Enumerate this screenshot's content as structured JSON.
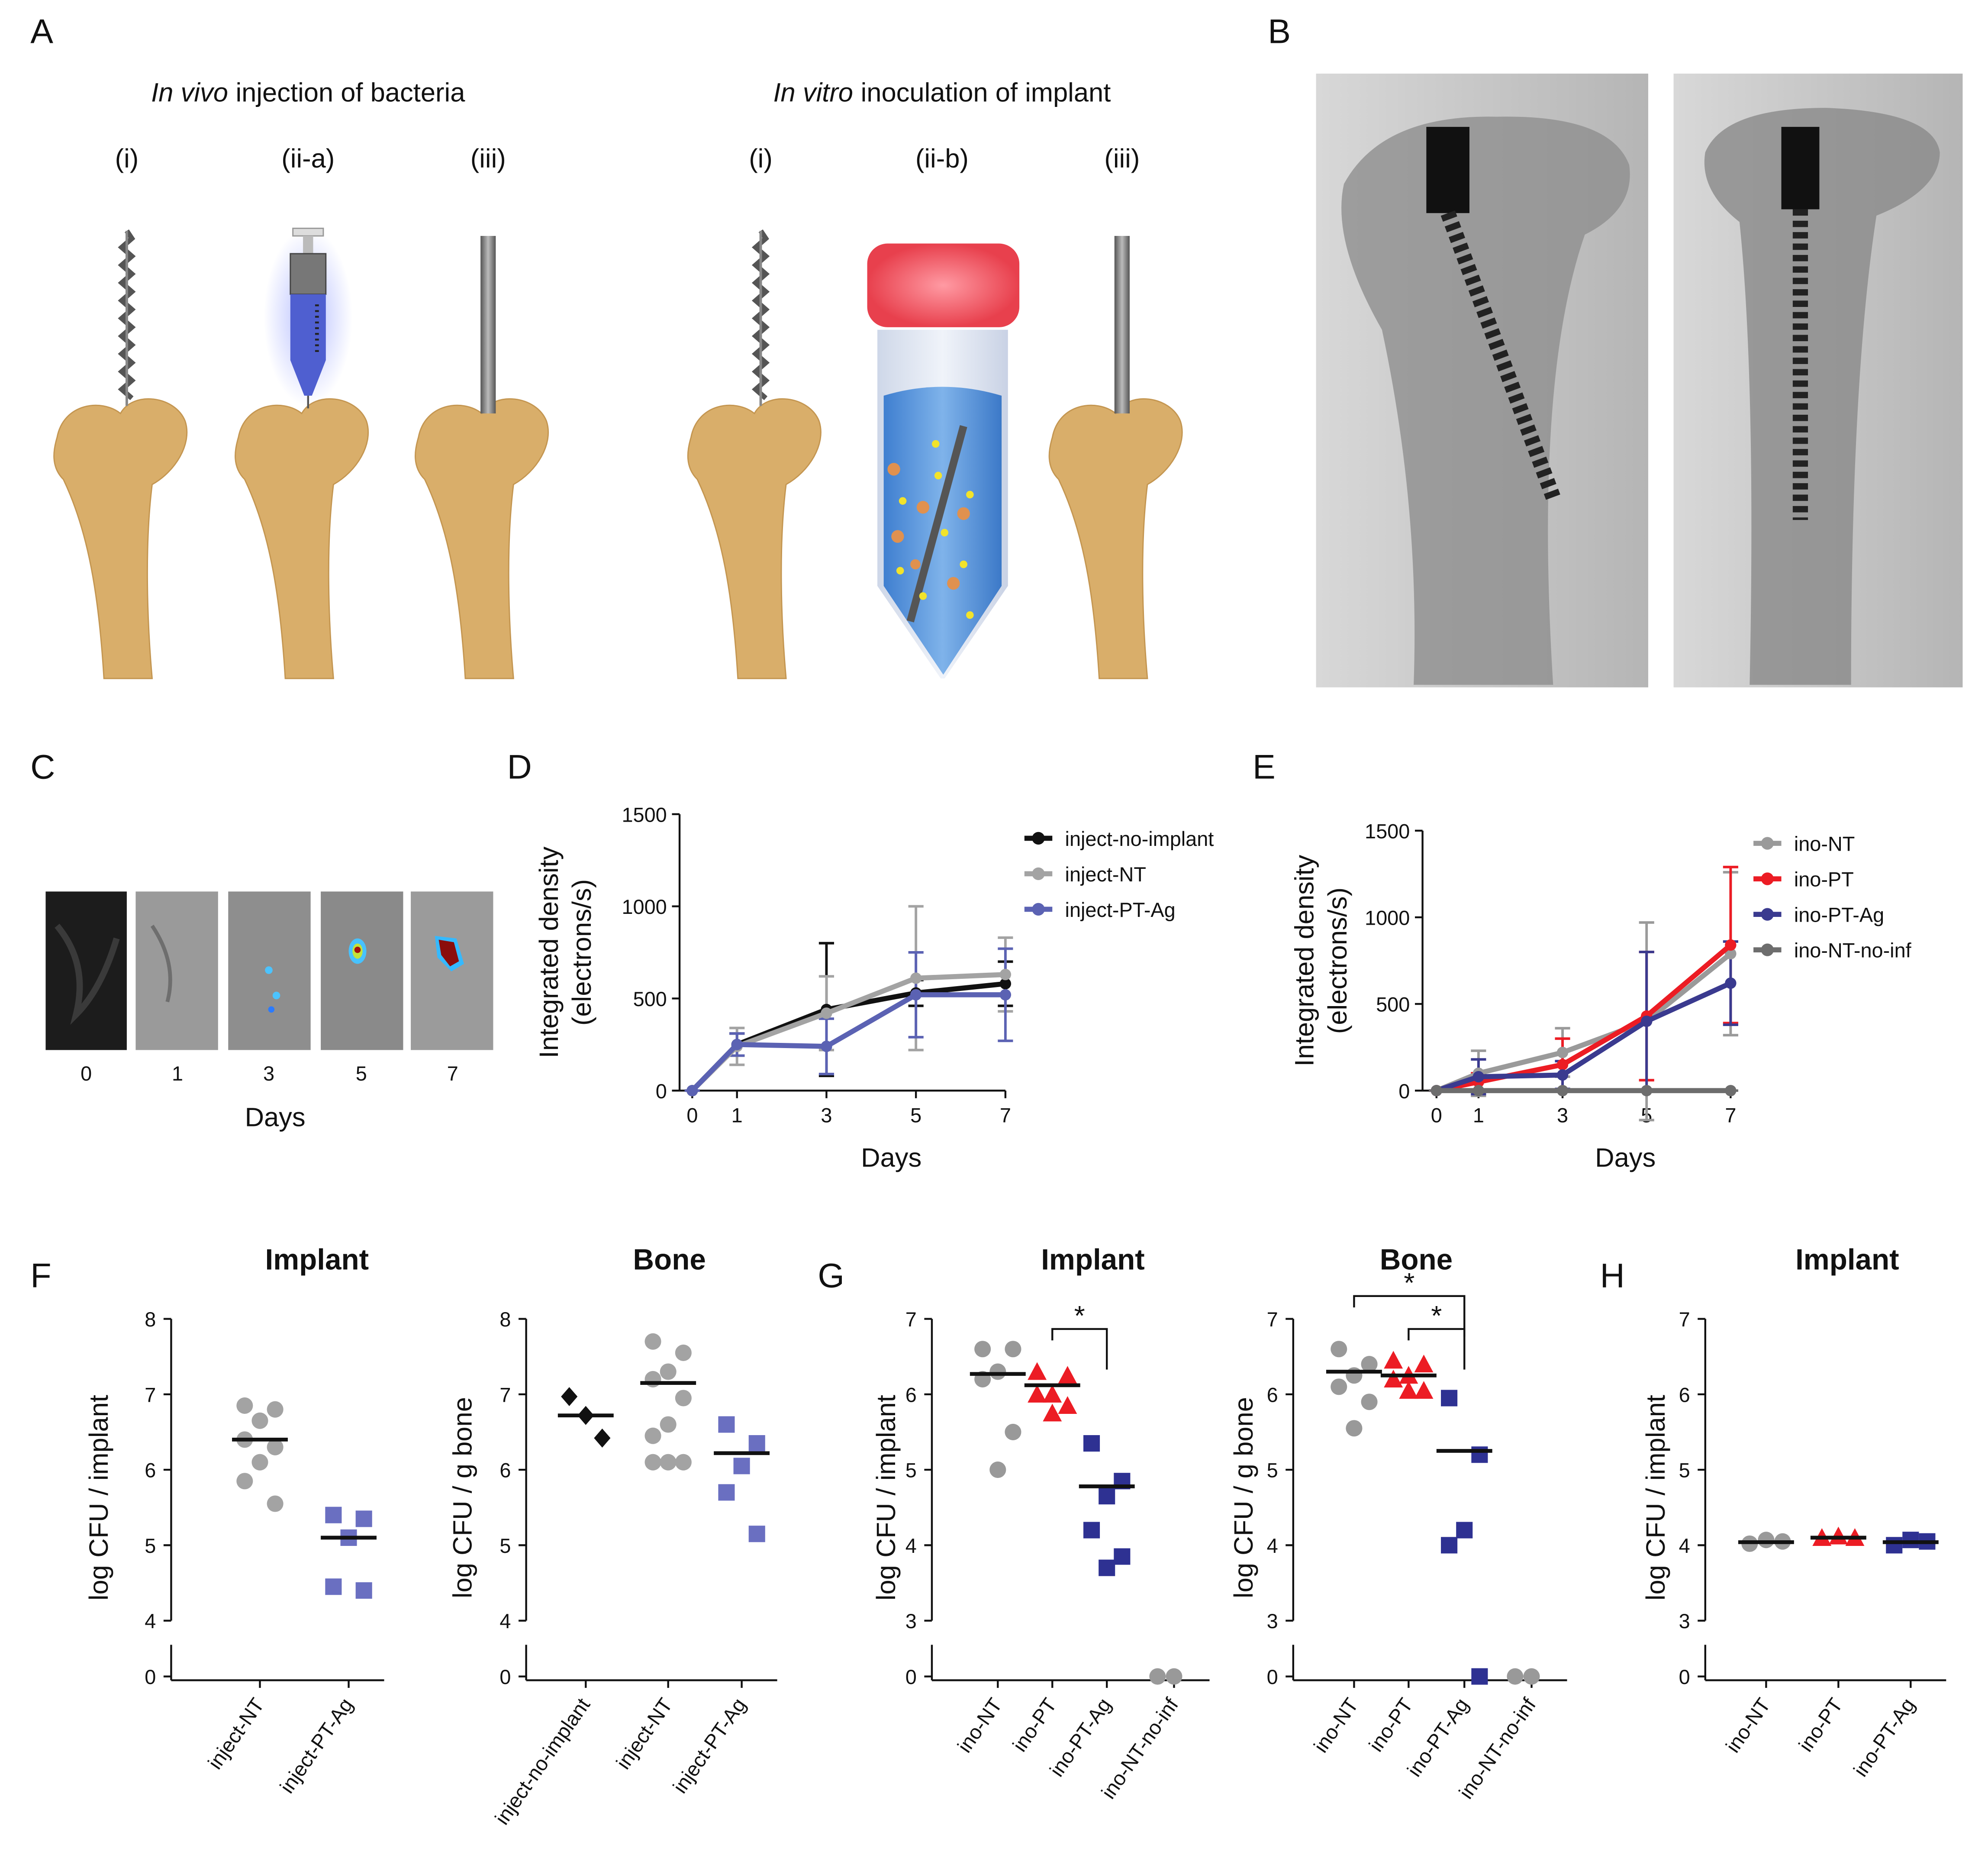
{
  "panel_a": {
    "label": "A",
    "groups": [
      {
        "title_italic": "In vivo",
        "title_rest": "injection of bacteria",
        "steps": [
          "(i)",
          "(ii-a)",
          "(iii)"
        ]
      },
      {
        "title_italic": "In vitro",
        "title_rest": "inoculation of implant",
        "steps": [
          "(i)",
          "(ii-b)",
          "(iii)"
        ]
      }
    ]
  },
  "panel_b": {
    "label": "B"
  },
  "panel_c": {
    "label": "C",
    "days": [
      "0",
      "1",
      "3",
      "5",
      "7"
    ],
    "xlabel": "Days"
  },
  "chart_data": [
    {
      "type": "line",
      "panel": "D",
      "xlabel": "Days",
      "ylabel": [
        "Integrated density",
        "(electrons/s)"
      ],
      "x": [
        0,
        1,
        3,
        5,
        7
      ],
      "xlim": [
        0,
        7
      ],
      "xticks": [
        0,
        1,
        3,
        5,
        7
      ],
      "ylim": [
        0,
        1500
      ],
      "yticks": [
        0,
        500,
        1000,
        1500
      ],
      "series": [
        {
          "name": "inject-no-implant",
          "color": "#111111",
          "values": [
            0,
            250,
            440,
            530,
            580
          ],
          "errors": [
            0,
            60,
            360,
            70,
            120
          ]
        },
        {
          "name": "inject-NT",
          "color": "#a3a3a3",
          "values": [
            0,
            240,
            420,
            610,
            630
          ],
          "errors": [
            0,
            100,
            200,
            390,
            200
          ]
        },
        {
          "name": "inject-PT-Ag",
          "color": "#5b62b3",
          "values": [
            0,
            250,
            240,
            520,
            520
          ],
          "errors": [
            0,
            60,
            150,
            230,
            250
          ]
        }
      ]
    },
    {
      "type": "line",
      "panel": "E",
      "xlabel": "Days",
      "ylabel": [
        "Integrated density",
        "(electrons/s)"
      ],
      "x": [
        0,
        1,
        3,
        5,
        7
      ],
      "xlim": [
        0,
        7
      ],
      "xticks": [
        0,
        1,
        3,
        5,
        7
      ],
      "ylim": [
        0,
        1500
      ],
      "yticks": [
        0,
        500,
        1000,
        1500
      ],
      "series": [
        {
          "name": "ino-NT",
          "color": "#9a9a9a",
          "values": [
            0,
            100,
            220,
            400,
            790
          ],
          "errors": [
            0,
            130,
            140,
            570,
            470
          ]
        },
        {
          "name": "ino-PT",
          "color": "#ec1c24",
          "values": [
            0,
            50,
            150,
            430,
            840
          ],
          "errors": [
            0,
            50,
            150,
            370,
            450
          ]
        },
        {
          "name": "ino-PT-Ag",
          "color": "#3a3a8f",
          "values": [
            0,
            80,
            90,
            400,
            620
          ],
          "errors": [
            0,
            100,
            80,
            400,
            240
          ]
        },
        {
          "name": "ino-NT-no-inf",
          "color": "#6d6d6d",
          "values": [
            0,
            0,
            0,
            0,
            0
          ],
          "errors": [
            0,
            0,
            0,
            0,
            0
          ]
        }
      ]
    },
    {
      "type": "dot",
      "panel": "F",
      "title": "Implant",
      "ylabel": "log CFU / implant",
      "ylim": [
        0,
        8
      ],
      "ybreak": [
        0,
        4
      ],
      "yticks": [
        0,
        4,
        5,
        6,
        7,
        8
      ],
      "series": [
        {
          "name": "inject-NT",
          "color": "#a3a3a3",
          "marker": "circle",
          "values": [
            6.85,
            6.8,
            6.65,
            6.4,
            6.3,
            6.1,
            5.85,
            5.55
          ],
          "mean": 6.4
        },
        {
          "name": "inject-PT-Ag",
          "color": "#6a6fc1",
          "marker": "square",
          "values": [
            5.4,
            5.35,
            5.1,
            4.45,
            4.4
          ],
          "mean": 5.1
        }
      ]
    },
    {
      "type": "dot",
      "title": "Bone",
      "ylabel": "log CFU / g bone",
      "ylim": [
        0,
        8
      ],
      "ybreak": [
        0,
        4
      ],
      "yticks": [
        0,
        4,
        5,
        6,
        7,
        8
      ],
      "series": [
        {
          "name": "inject-no-implant",
          "color": "#111111",
          "marker": "diamond",
          "values": [
            6.97,
            6.72,
            6.42
          ],
          "mean": 6.72
        },
        {
          "name": "inject-NT",
          "color": "#a3a3a3",
          "marker": "circle",
          "values": [
            7.7,
            7.55,
            7.3,
            7.2,
            6.95,
            6.6,
            6.45,
            6.1,
            6.1,
            6.1
          ],
          "mean": 7.15
        },
        {
          "name": "inject-PT-Ag",
          "color": "#6a6fc1",
          "marker": "square",
          "values": [
            6.6,
            6.35,
            6.05,
            5.7,
            5.15
          ],
          "mean": 6.22
        }
      ]
    },
    {
      "type": "dot",
      "panel": "G",
      "title": "Implant",
      "ylabel": "log CFU / implant",
      "ylim": [
        0,
        7
      ],
      "ybreak": [
        0,
        3
      ],
      "yticks": [
        0,
        3,
        4,
        5,
        6,
        7
      ],
      "annotations": [
        {
          "groups": [
            "ino-PT",
            "ino-PT-Ag"
          ],
          "label": "*"
        }
      ],
      "series": [
        {
          "name": "ino-NT",
          "color": "#999999",
          "marker": "circle",
          "values": [
            6.6,
            6.6,
            6.3,
            6.2,
            5.5,
            5.0
          ],
          "mean": 6.27
        },
        {
          "name": "ino-PT",
          "color": "#ec1c24",
          "marker": "triangle",
          "values": [
            6.3,
            6.25,
            6.0,
            6.0,
            5.85,
            5.75
          ],
          "mean": 6.12
        },
        {
          "name": "ino-PT-Ag",
          "color": "#2e3192",
          "marker": "square",
          "values": [
            5.35,
            4.85,
            4.65,
            4.2,
            3.85,
            3.7
          ],
          "mean": 4.78
        },
        {
          "name": "ino-NT-no-inf",
          "color": "#999999",
          "marker": "circle",
          "values": [
            0,
            0
          ]
        }
      ]
    },
    {
      "type": "dot",
      "title": "Bone",
      "ylabel": "log CFU / g bone",
      "ylim": [
        0,
        7
      ],
      "ybreak": [
        0,
        3
      ],
      "yticks": [
        0,
        3,
        4,
        5,
        6,
        7
      ],
      "annotations": [
        {
          "groups": [
            "ino-NT",
            "ino-PT-Ag"
          ],
          "label": "*"
        },
        {
          "groups": [
            "ino-PT",
            "ino-PT-Ag"
          ],
          "label": "*"
        }
      ],
      "series": [
        {
          "name": "ino-NT",
          "color": "#999999",
          "marker": "circle",
          "values": [
            6.6,
            6.4,
            6.25,
            6.1,
            5.9,
            5.55
          ],
          "mean": 6.3
        },
        {
          "name": "ino-PT",
          "color": "#ec1c24",
          "marker": "triangle",
          "values": [
            6.45,
            6.4,
            6.25,
            6.2,
            6.05,
            6.05
          ],
          "mean": 6.25
        },
        {
          "name": "ino-PT-Ag",
          "color": "#2e3192",
          "marker": "square",
          "values": [
            5.95,
            5.2,
            4.2,
            4.0,
            0
          ],
          "mean": 5.25
        },
        {
          "name": "ino-NT-no-inf",
          "color": "#999999",
          "marker": "circle",
          "values": [
            0,
            0
          ]
        }
      ]
    },
    {
      "type": "dot",
      "panel": "H",
      "title": "Implant",
      "ylabel": "log CFU / implant",
      "ylim": [
        0,
        7
      ],
      "ybreak": [
        0,
        3
      ],
      "yticks": [
        0,
        3,
        4,
        5,
        6,
        7
      ],
      "series": [
        {
          "name": "ino-NT",
          "color": "#999999",
          "marker": "circle",
          "values": [
            4.02,
            4.07,
            4.05
          ],
          "mean": 4.04
        },
        {
          "name": "ino-PT",
          "color": "#ec1c24",
          "marker": "triangle",
          "values": [
            4.1,
            4.12,
            4.1
          ],
          "mean": 4.1
        },
        {
          "name": "ino-PT-Ag",
          "color": "#2e3192",
          "marker": "square",
          "values": [
            4.0,
            4.07,
            4.05
          ],
          "mean": 4.04
        }
      ]
    }
  ]
}
